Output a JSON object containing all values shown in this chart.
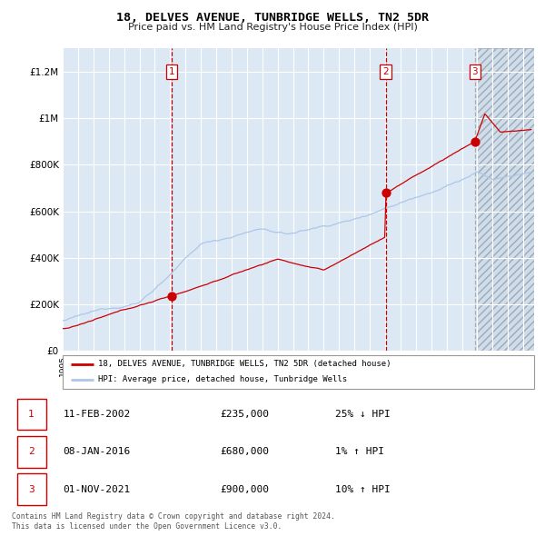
{
  "title": "18, DELVES AVENUE, TUNBRIDGE WELLS, TN2 5DR",
  "subtitle": "Price paid vs. HM Land Registry's House Price Index (HPI)",
  "legend_line1": "18, DELVES AVENUE, TUNBRIDGE WELLS, TN2 5DR (detached house)",
  "legend_line2": "HPI: Average price, detached house, Tunbridge Wells",
  "transactions": [
    {
      "num": 1,
      "date": "11-FEB-2002",
      "price": 235000,
      "pct": "25%",
      "dir": "↓",
      "year_x": 2002.1
    },
    {
      "num": 2,
      "date": "08-JAN-2016",
      "price": 680000,
      "pct": "1%",
      "dir": "↑",
      "year_x": 2016.03
    },
    {
      "num": 3,
      "date": "01-NOV-2021",
      "price": 900000,
      "pct": "10%",
      "dir": "↑",
      "year_x": 2021.84
    }
  ],
  "footer1": "Contains HM Land Registry data © Crown copyright and database right 2024.",
  "footer2": "This data is licensed under the Open Government Licence v3.0.",
  "hpi_color": "#aec6e8",
  "price_color": "#cc0000",
  "dot_color": "#cc0000",
  "bg_color": "#dce9f5",
  "grid_color": "#ffffff",
  "vline_color_red": "#cc0000",
  "vline_color_grey": "#aaaaaa",
  "ylim": [
    0,
    1300000
  ],
  "xlim_start": 1995.0,
  "xlim_end": 2025.7,
  "hatch_start": 2022.0
}
